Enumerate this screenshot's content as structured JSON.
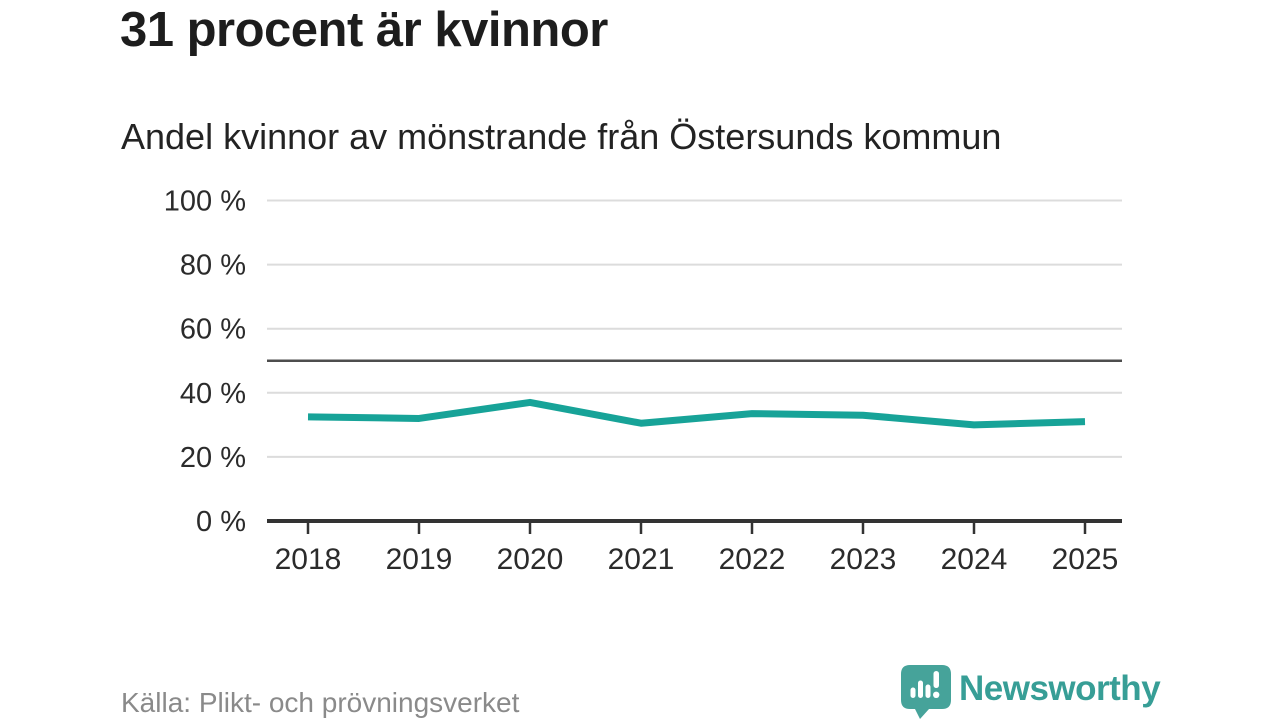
{
  "header": {
    "title": "31 procent är kvinnor",
    "subtitle": "Andel kvinnor av mönstrande från Östersunds kommun"
  },
  "chart_data": {
    "type": "line",
    "title": "31 procent är kvinnor",
    "subtitle": "Andel kvinnor av mönstrande från Östersunds kommun",
    "categories": [
      "2018",
      "2019",
      "2020",
      "2021",
      "2022",
      "2023",
      "2024",
      "2025"
    ],
    "series": [
      {
        "name": "Andel kvinnor av mönstrande",
        "values": [
          32.5,
          32,
          37,
          30.5,
          33.5,
          33,
          30,
          31
        ]
      }
    ],
    "xlabel": "",
    "ylabel": "",
    "ylim": [
      0,
      100
    ],
    "yticks": [
      0,
      20,
      40,
      60,
      80,
      100
    ],
    "ytick_suffix": " %",
    "reference_line": 50,
    "grid": true,
    "legend_position": "none",
    "colors": {
      "line": "#17a398",
      "grid": "#dcdcdc",
      "axis": "#333333",
      "reference": "#4d4d4d",
      "tick_text": "#2b2b2b"
    }
  },
  "footer": {
    "source": "Källa: Plikt- och prövningsverket",
    "brand": "Newsworthy"
  },
  "colors": {
    "accent": "#17a398",
    "brand_text": "#379e96",
    "logo_fill": "#46a39a",
    "source_text": "#8a8a8a"
  }
}
